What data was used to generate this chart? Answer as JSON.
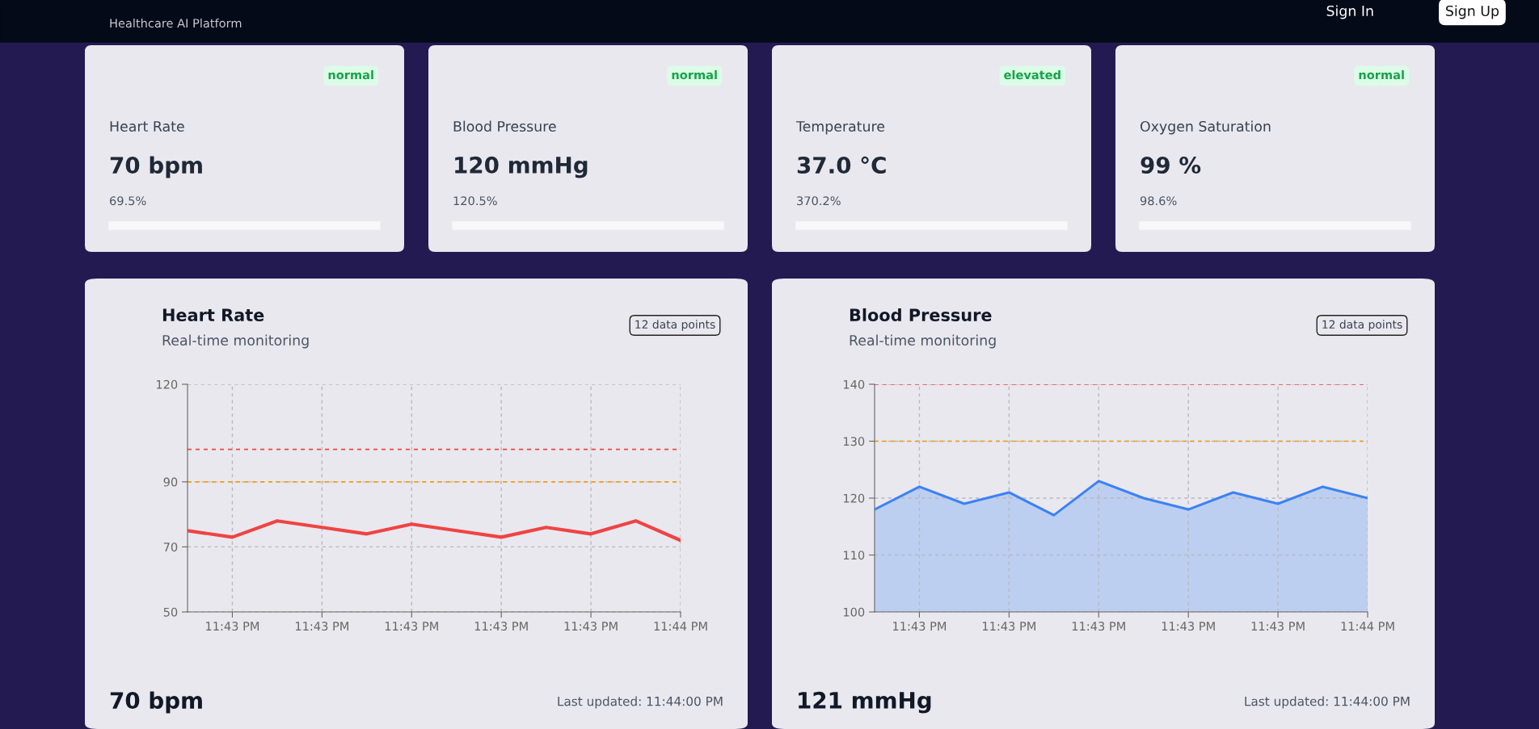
{
  "chart_data": [
    {
      "type": "other",
      "annotations": [
        "normal",
        "Heart Rate",
        "70 bpm",
        "69.5%",
        "normal",
        "Blood Pressure",
        "120 mmHg",
        "120.5%",
        "elevated",
        "Temperature",
        "37.0 °C",
        "370.2%",
        "normal",
        "Oxygen Saturation",
        "99 %",
        "98.6%",
        "Healthcare AI Platform",
        "Sign In",
        "Sign Up"
      ]
    },
    {
      "type": "line",
      "title": "Heart Rate",
      "subtitle": "Real-time monitoring",
      "categories": [
        null,
        "11:43 PM",
        null,
        "11:43 PM",
        null,
        "11:43 PM",
        null,
        "11:43 PM",
        null,
        "11:43 PM",
        null,
        "11:44 PM"
      ],
      "series": [
        {
          "color": "#ef4444",
          "values": [
            75,
            73,
            78,
            76,
            74,
            77,
            75,
            73,
            76,
            74,
            78,
            72
          ]
        }
      ],
      "ylim": [
        50,
        120
      ],
      "yticks": [
        50,
        70,
        90,
        120
      ],
      "grid": true,
      "marker": "none",
      "line_style": "solid",
      "ref_lines": [
        {
          "axis": "y",
          "value": 100,
          "color": "#ef4444",
          "line_style": "dashed"
        },
        {
          "axis": "y",
          "value": 90,
          "color": "#f59e0b",
          "line_style": "dashed"
        }
      ],
      "annotations": [
        "12 data points",
        "70 bpm",
        "Last updated: 11:44:00 PM"
      ]
    },
    {
      "type": "area",
      "title": "Blood Pressure",
      "subtitle": "Real-time monitoring",
      "categories": [
        null,
        "11:43 PM",
        null,
        "11:43 PM",
        null,
        "11:43 PM",
        null,
        "11:43 PM",
        null,
        "11:43 PM",
        null,
        "11:44 PM"
      ],
      "series": [
        {
          "color": "#3b82f6",
          "values": [
            118,
            122,
            119,
            121,
            117,
            123,
            120,
            118,
            121,
            119,
            122,
            120
          ]
        }
      ],
      "ylim": [
        100,
        140
      ],
      "yticks": [
        100,
        110,
        120,
        130,
        140
      ],
      "grid": true,
      "marker": "none",
      "line_style": "solid",
      "ref_lines": [
        {
          "axis": "y",
          "value": 140,
          "color": "#ef4444",
          "line_style": "dashed"
        },
        {
          "axis": "y",
          "value": 130,
          "color": "#f59e0b",
          "line_style": "dashed"
        }
      ],
      "annotations": [
        "12 data points",
        "121 mmHg",
        "Last updated: 11:44:00 PM"
      ]
    }
  ]
}
